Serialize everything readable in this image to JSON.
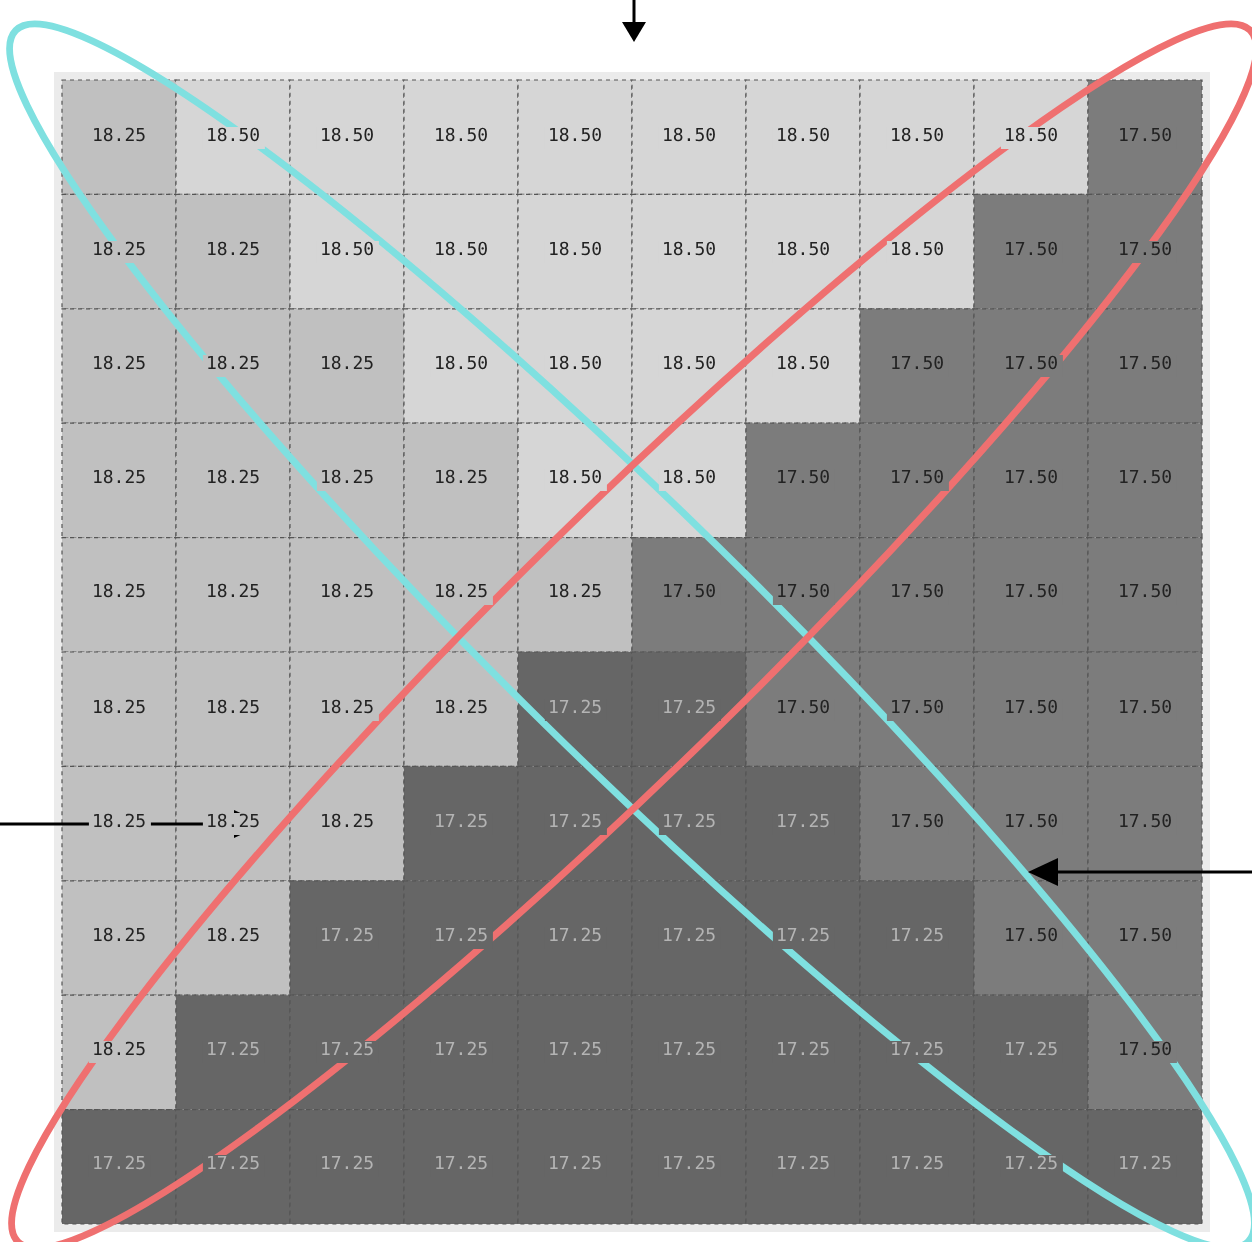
{
  "chart_data": {
    "type": "heatmap",
    "categories": [
      null,
      null,
      null,
      null,
      null,
      null,
      null,
      null,
      null,
      null
    ],
    "y_categories": [
      null,
      null,
      null,
      null,
      null,
      null,
      null,
      null,
      null,
      null
    ],
    "cells": [
      [
        18.25,
        18.5,
        18.5,
        18.5,
        18.5,
        18.5,
        18.5,
        18.5,
        18.5,
        17.5
      ],
      [
        18.25,
        18.25,
        18.5,
        18.5,
        18.5,
        18.5,
        18.5,
        18.5,
        17.5,
        17.5
      ],
      [
        18.25,
        18.25,
        18.25,
        18.5,
        18.5,
        18.5,
        18.5,
        17.5,
        17.5,
        17.5
      ],
      [
        18.25,
        18.25,
        18.25,
        18.25,
        18.5,
        18.5,
        17.5,
        17.5,
        17.5,
        17.5
      ],
      [
        18.25,
        18.25,
        18.25,
        18.25,
        18.25,
        17.5,
        17.5,
        17.5,
        17.5,
        17.5
      ],
      [
        18.25,
        18.25,
        18.25,
        18.25,
        17.25,
        17.25,
        17.5,
        17.5,
        17.5,
        17.5
      ],
      [
        18.25,
        18.25,
        18.25,
        17.25,
        17.25,
        17.25,
        17.25,
        17.5,
        17.5,
        17.5
      ],
      [
        18.25,
        18.25,
        17.25,
        17.25,
        17.25,
        17.25,
        17.25,
        17.25,
        17.5,
        17.5
      ],
      [
        18.25,
        17.25,
        17.25,
        17.25,
        17.25,
        17.25,
        17.25,
        17.25,
        17.25,
        17.5
      ],
      [
        17.25,
        17.25,
        17.25,
        17.25,
        17.25,
        17.25,
        17.25,
        17.25,
        17.25,
        17.25
      ]
    ],
    "cell_labels": [
      [
        "18.25",
        "18.50",
        "18.50",
        "18.50",
        "18.50",
        "18.50",
        "18.50",
        "18.50",
        "18.50",
        "17.50"
      ],
      [
        "18.25",
        "18.25",
        "18.50",
        "18.50",
        "18.50",
        "18.50",
        "18.50",
        "18.50",
        "17.50",
        "17.50"
      ],
      [
        "18.25",
        "18.25",
        "18.25",
        "18.50",
        "18.50",
        "18.50",
        "18.50",
        "17.50",
        "17.50",
        "17.50"
      ],
      [
        "18.25",
        "18.25",
        "18.25",
        "18.25",
        "18.50",
        "18.50",
        "17.50",
        "17.50",
        "17.50",
        "17.50"
      ],
      [
        "18.25",
        "18.25",
        "18.25",
        "18.25",
        "18.25",
        "17.50",
        "17.50",
        "17.50",
        "17.50",
        "17.50"
      ],
      [
        "18.25",
        "18.25",
        "18.25",
        "18.25",
        "17.25",
        "17.25",
        "17.50",
        "17.50",
        "17.50",
        "17.50"
      ],
      [
        "18.25",
        "18.25",
        "18.25",
        "17.25",
        "17.25",
        "17.25",
        "17.25",
        "17.50",
        "17.50",
        "17.50"
      ],
      [
        "18.25",
        "18.25",
        "17.25",
        "17.25",
        "17.25",
        "17.25",
        "17.25",
        "17.25",
        "17.50",
        "17.50"
      ],
      [
        "18.25",
        "17.25",
        "17.25",
        "17.25",
        "17.25",
        "17.25",
        "17.25",
        "17.25",
        "17.25",
        "17.50"
      ],
      [
        "17.25",
        "17.25",
        "17.25",
        "17.25",
        "17.25",
        "17.25",
        "17.25",
        "17.25",
        "17.25",
        "17.25"
      ]
    ]
  }
}
